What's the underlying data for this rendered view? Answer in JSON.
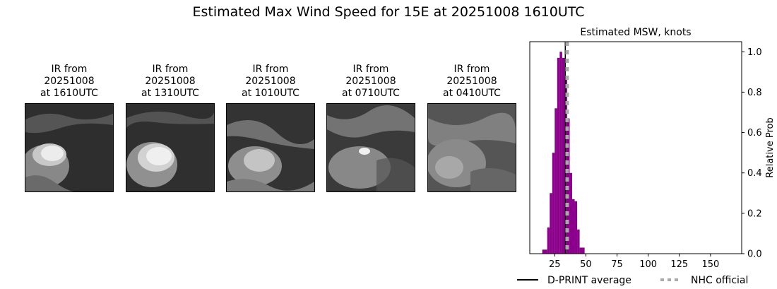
{
  "title": "Estimated Max Wind Speed for 15E at 20251008 1610UTC",
  "panels": [
    {
      "line1": "IR from",
      "line2": "20251008",
      "line3": "at 1610UTC"
    },
    {
      "line1": "IR from",
      "line2": "20251008",
      "line3": "at 1310UTC"
    },
    {
      "line1": "IR from",
      "line2": "20251008",
      "line3": "at 1010UTC"
    },
    {
      "line1": "IR from",
      "line2": "20251008",
      "line3": "at 0710UTC"
    },
    {
      "line1": "IR from",
      "line2": "20251008",
      "line3": "at 0410UTC"
    }
  ],
  "chart_data": {
    "type": "bar",
    "title": "Estimated MSW, knots",
    "xlabel": "",
    "ylabel": "Relative Prob",
    "xlim": [
      5,
      175
    ],
    "ylim": [
      0,
      1.05
    ],
    "xticks": [
      25,
      50,
      75,
      100,
      125,
      150
    ],
    "yticks": [
      0.0,
      0.2,
      0.4,
      0.6,
      0.8,
      1.0
    ],
    "ytick_labels": [
      "0.0",
      "0.2",
      "0.4",
      "0.6",
      "0.8",
      "1.0"
    ],
    "bar_color": "#8b008b",
    "bins": [
      {
        "x0": 15,
        "x1": 19,
        "value": 0.02
      },
      {
        "x0": 19,
        "x1": 21,
        "value": 0.13
      },
      {
        "x0": 21,
        "x1": 23,
        "value": 0.3
      },
      {
        "x0": 23,
        "x1": 25,
        "value": 0.5
      },
      {
        "x0": 25,
        "x1": 27,
        "value": 0.72
      },
      {
        "x0": 27,
        "x1": 29,
        "value": 0.97
      },
      {
        "x0": 29,
        "x1": 31,
        "value": 1.0
      },
      {
        "x0": 31,
        "x1": 33,
        "value": 0.97
      },
      {
        "x0": 33,
        "x1": 35,
        "value": 0.87
      },
      {
        "x0": 35,
        "x1": 37,
        "value": 0.67
      },
      {
        "x0": 37,
        "x1": 39,
        "value": 0.4
      },
      {
        "x0": 39,
        "x1": 41,
        "value": 0.27
      },
      {
        "x0": 41,
        "x1": 43,
        "value": 0.26
      },
      {
        "x0": 43,
        "x1": 45,
        "value": 0.12
      },
      {
        "x0": 45,
        "x1": 49,
        "value": 0.03
      }
    ],
    "dprint_average": 33.5,
    "nhc_official": 35,
    "legend": {
      "dprint_label": "D-PRINT average",
      "nhc_label": "NHC official",
      "placement": "below"
    }
  }
}
